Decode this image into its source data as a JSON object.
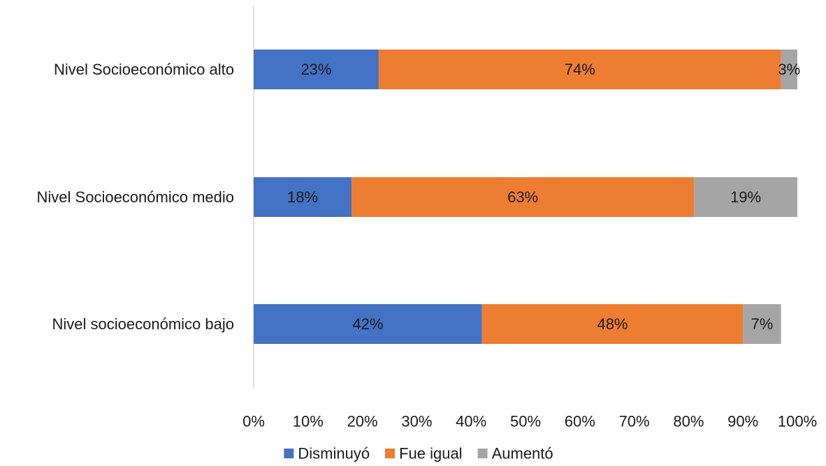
{
  "chart_data": {
    "type": "bar",
    "orientation": "horizontal",
    "stacked": "percent",
    "title": "",
    "xlabel": "",
    "ylabel": "",
    "xlim": [
      0,
      100
    ],
    "x_ticks": [
      "0%",
      "10%",
      "20%",
      "30%",
      "40%",
      "50%",
      "60%",
      "70%",
      "80%",
      "90%",
      "100%"
    ],
    "categories": [
      "Nivel Socioeconómico alto",
      "Nivel Socioeconómico medio",
      "Nivel socioeconómico bajo"
    ],
    "series": [
      {
        "name": "Disminuyó",
        "color": "#4472C4",
        "values": [
          23,
          18,
          42
        ],
        "labels": [
          "23%",
          "18%",
          "42%"
        ]
      },
      {
        "name": "Fue igual",
        "color": "#ED7D31",
        "values": [
          74,
          63,
          48
        ],
        "labels": [
          "74%",
          "63%",
          "48%"
        ]
      },
      {
        "name": "Aumentó",
        "color": "#A5A5A5",
        "values": [
          3,
          19,
          7
        ],
        "labels": [
          "3%",
          "19%",
          "7%"
        ]
      }
    ],
    "grid": false,
    "legend_position": "bottom"
  }
}
